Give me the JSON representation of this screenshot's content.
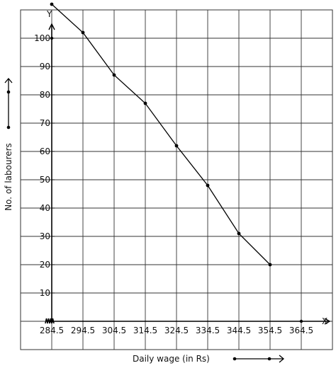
{
  "chart_data": {
    "type": "line",
    "xlabel": "Daily wage (in Rs)",
    "ylabel": "No. of labourers",
    "x_axis_letter": "X",
    "y_axis_letter": "Y",
    "x_ticks": [
      "284.5",
      "294.5",
      "304.5",
      "314.5",
      "324.5",
      "334.5",
      "344.5",
      "354.5",
      "364.5"
    ],
    "y_ticks": [
      "10",
      "20",
      "30",
      "40",
      "50",
      "60",
      "70",
      "80",
      "90",
      "100"
    ],
    "xlim": [
      274.5,
      374.5
    ],
    "ylim": [
      -10,
      110
    ],
    "grid": true,
    "series": [
      {
        "x": [
          284.5,
          294.5,
          304.5,
          314.5,
          324.5,
          334.5,
          344.5,
          354.5
        ],
        "y": [
          112,
          102,
          87,
          77,
          62,
          48,
          31,
          20
        ]
      }
    ],
    "axis_markers": [
      {
        "axis": "y",
        "value": 100
      },
      {
        "axis": "x",
        "value": 364.5
      }
    ],
    "axis_break": "zig-zag on the x-axis near the origin",
    "colors": {
      "line": "#000000",
      "grid": "#333333",
      "background": "#ffffff"
    }
  }
}
